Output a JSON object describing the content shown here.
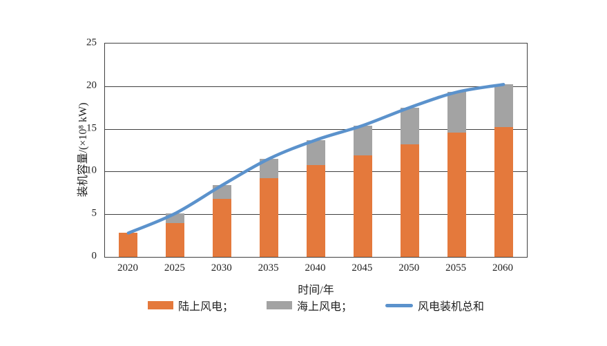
{
  "chart_data": {
    "type": "bar",
    "stacked": true,
    "categories": [
      "2020",
      "2025",
      "2030",
      "2035",
      "2040",
      "2045",
      "2050",
      "2055",
      "2060"
    ],
    "series": [
      {
        "key": "onshore-wind",
        "name": "陆上风电",
        "type": "bar",
        "color": "#E4793C",
        "values": [
          2.8,
          4.0,
          6.8,
          9.2,
          10.8,
          11.9,
          13.2,
          14.6,
          15.2
        ]
      },
      {
        "key": "offshore-wind",
        "name": "海上风电",
        "type": "bar",
        "color": "#A3A3A3",
        "values": [
          0,
          1.1,
          1.6,
          2.3,
          2.9,
          3.5,
          4.3,
          4.7,
          5.0
        ]
      },
      {
        "key": "total-wind",
        "name": "风电装机总和",
        "type": "line",
        "color": "#5B92CC",
        "values": [
          2.8,
          5.1,
          8.4,
          11.5,
          13.7,
          15.4,
          17.5,
          19.3,
          20.2
        ]
      }
    ],
    "title": "",
    "xlabel": "时间/年",
    "ylabel": "装机容量/(×10⁸ kW)",
    "ylim": [
      0,
      25
    ],
    "yticks": [
      0,
      5,
      10,
      15,
      20,
      25
    ],
    "grid": true,
    "legend_position": "bottom"
  },
  "legend": {
    "items": [
      {
        "label": "陆上风电；",
        "swatch": "bar",
        "color": "#E4793C",
        "key": "onshore-wind"
      },
      {
        "label": "海上风电；",
        "swatch": "bar",
        "color": "#A3A3A3",
        "key": "offshore-wind"
      },
      {
        "label": "风电装机总和",
        "swatch": "line",
        "color": "#5B92CC",
        "key": "total-wind"
      }
    ]
  }
}
